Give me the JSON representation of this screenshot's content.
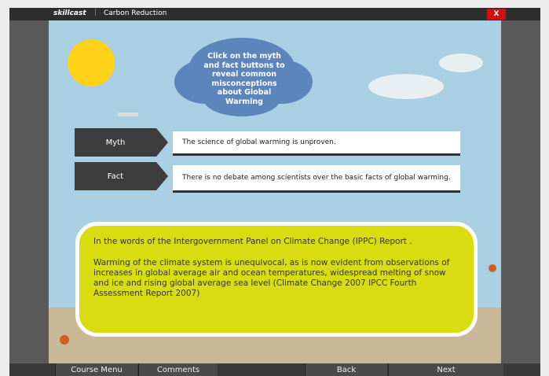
{
  "header": {
    "brand": "skillcast",
    "title": "Carbon Reduction",
    "close": "X"
  },
  "instruction": "Click on the myth and fact buttons to reveal common misconceptions about Global Warming",
  "rows": [
    {
      "label": "Myth",
      "text": "The science of global warming is unproven."
    },
    {
      "label": "Fact",
      "text": "There is no debate among scientists over the basic facts of global warming."
    }
  ],
  "quote": {
    "intro": "In the words of the Intergovernment Panel on Climate Change (IPPC) Report .",
    "body": "Warming of the climate system is unequivocal, as is now evident from observations of increases in global average air and ocean temperatures, widespread melting of snow and ice and rising global average sea level  (Climate Change 2007 IPCC Fourth Assessment Report 2007)"
  },
  "nav": {
    "course_menu": "Course Menu",
    "comments": "Comments",
    "back": "Back",
    "next": "Next"
  }
}
